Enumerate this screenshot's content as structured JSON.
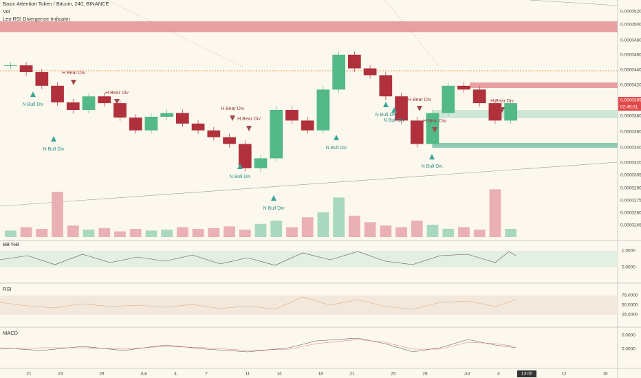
{
  "header": {
    "symbol": "Basic Attention Token / Bitcoin, 240, BINANCE",
    "volume": "Vol",
    "indicator": "Leo RSI Divergence Indicator"
  },
  "price_axis": [
    "0.00005200",
    "0.00005000",
    "0.00004800",
    "0.00004600",
    "0.00004400",
    "0.00004200",
    "0.00003999",
    "02:49:01",
    "0.00003800",
    "0.00003600",
    "0.00003400",
    "0.00003200",
    "0.00003050",
    "0.00002900",
    "0.00002750",
    "0.00002600",
    "0.00002450"
  ],
  "closes": [
    4.49e-05,
    4.4e-05,
    4.22e-05,
    4e-05,
    3.9e-05,
    4.08e-05,
    3.99e-05,
    3.8e-05,
    3.63e-05,
    3.81e-05,
    3.86e-05,
    3.72e-05,
    3.63e-05,
    3.54e-05,
    3.45e-05,
    3.13e-05,
    3.26e-05,
    3.9e-05,
    3.76e-05,
    3.63e-05,
    4.17e-05,
    4.63e-05,
    4.45e-05,
    4.36e-05,
    4.08e-05,
    3.76e-05,
    3.45e-05,
    3.86e-05,
    4.22e-05,
    4.17e-05,
    3.99e-05,
    3.76e-05,
    3.99e-05
  ],
  "volume": [
    8,
    12,
    10,
    55,
    14,
    9,
    11,
    7,
    10,
    8,
    9,
    12,
    10,
    11,
    13,
    9,
    16,
    20,
    12,
    24,
    30,
    48,
    26,
    18,
    14,
    12,
    20,
    15,
    10,
    12,
    9,
    58,
    10
  ],
  "annotations": [
    "N Bull Div",
    "H Bear Div",
    "N Bull Div",
    "H Bear Div",
    "H Bear Div",
    "H Bear Div",
    "N Bull Div",
    "N Bull Div",
    "N Bull Div",
    "N Bull Div",
    "N Bull Div",
    "H Bear Div",
    "H Bear Div",
    "N Bull Div",
    "H Bear Div"
  ],
  "panels": [
    {
      "title": "BB %B",
      "axis": [
        "1.0000",
        "0.0000"
      ]
    },
    {
      "title": "RSI",
      "axis": [
        "75.0000",
        "50.0000",
        "25.0000"
      ]
    },
    {
      "title": "MACD",
      "axis": [
        "0.0000",
        "0.0000"
      ]
    }
  ],
  "time_axis": [
    "21",
    "24",
    "28",
    "Jun",
    "4",
    "7",
    "11",
    "14",
    "18",
    "21",
    "25",
    "28",
    "Jul",
    "4",
    "13:00",
    "12",
    "16"
  ]
}
